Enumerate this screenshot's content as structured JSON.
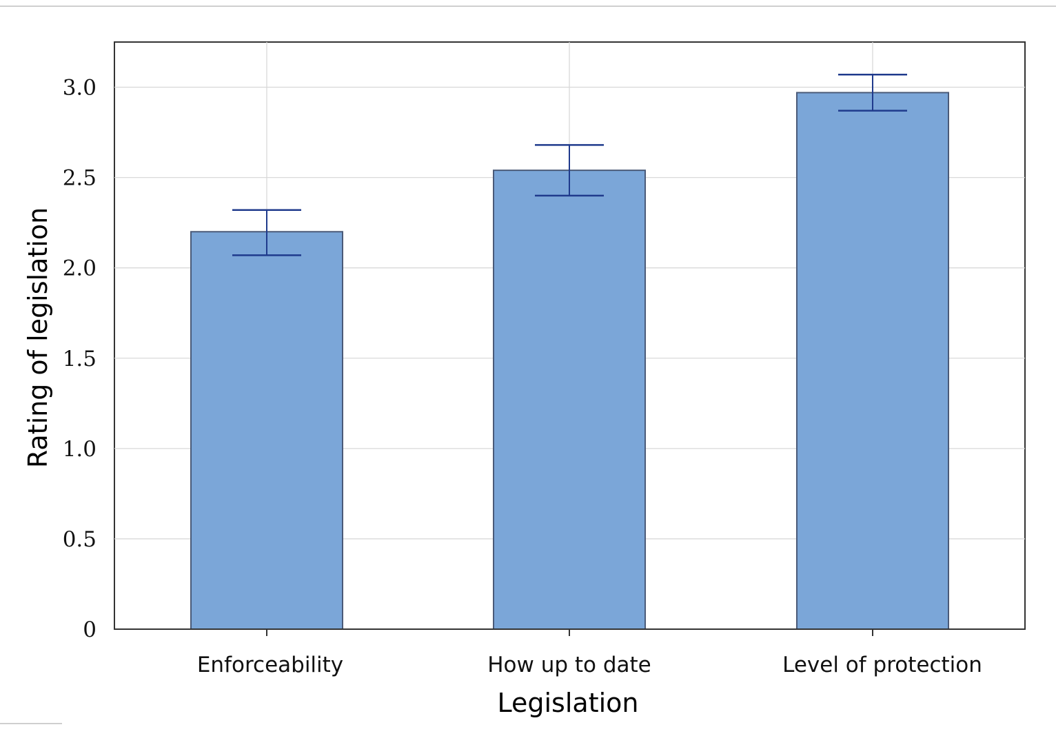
{
  "chart_data": {
    "type": "bar",
    "xlabel": "Legislation",
    "ylabel": "Rating of legislation",
    "categories": [
      "Enforceability",
      "How up to date",
      "Level of protection"
    ],
    "values": [
      2.2,
      2.54,
      2.97
    ],
    "error_low": [
      2.07,
      2.4,
      2.87
    ],
    "error_high": [
      2.32,
      2.68,
      3.07
    ],
    "ylim": [
      0,
      3.25
    ],
    "yticks": [
      0,
      0.5,
      1.0,
      1.5,
      2.0,
      2.5,
      3.0
    ],
    "ytick_labels": [
      "0",
      "0.5",
      "1.0",
      "1.5",
      "2.0",
      "2.5",
      "3.0"
    ],
    "grid": true,
    "legend": "none",
    "bar_color": "#7ba6d8",
    "bar_edge_color": "#4a5a78",
    "error_bar_color": "#1f3a8c",
    "grid_color": "#d9d9d9"
  }
}
